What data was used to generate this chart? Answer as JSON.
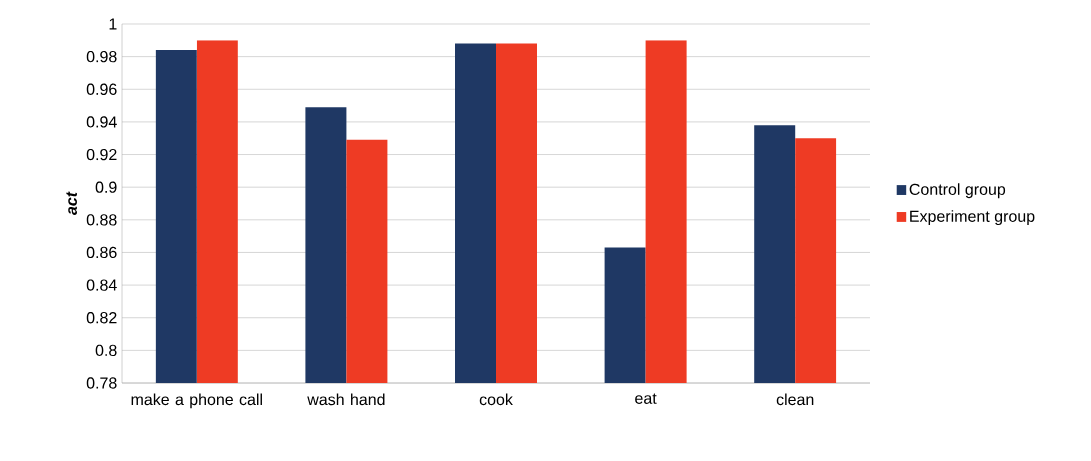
{
  "chart_data": {
    "type": "bar",
    "ylabel": "act",
    "categories": [
      "make a phone call",
      "wash hand",
      "cook",
      "eat",
      "clean"
    ],
    "series": [
      {
        "name": "Control group",
        "color": "#1f3864",
        "values": [
          0.984,
          0.949,
          0.988,
          0.863,
          0.938
        ]
      },
      {
        "name": "Experiment group",
        "color": "#ee3b24",
        "values": [
          0.99,
          0.929,
          0.988,
          0.99,
          0.93
        ]
      }
    ],
    "ylim": [
      0.78,
      1
    ],
    "yticks": [
      0.78,
      0.8,
      0.82,
      0.84,
      0.86,
      0.88,
      0.9,
      0.92,
      0.94,
      0.96,
      0.98,
      1
    ],
    "grid": "y",
    "legend": "right"
  }
}
